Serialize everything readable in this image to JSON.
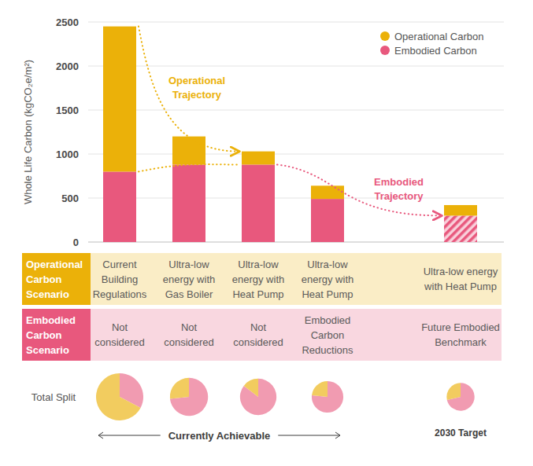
{
  "chart_data": {
    "type": "bar",
    "stacked": true,
    "y_label": "Whole Life Carbon (kgCO₂e/m²)",
    "categories": [
      "Current Building Regulations",
      "Ultra-low energy with Gas Boiler",
      "Ultra-low energy with Heat Pump",
      "Ultra-low energy with Heat Pump",
      "Ultra-low energy with Heat Pump"
    ],
    "series": [
      {
        "name": "Embodied Carbon",
        "color": "#e8587d",
        "values": [
          800,
          880,
          880,
          490,
          300
        ]
      },
      {
        "name": "Operational Carbon",
        "color": "#ebb109",
        "values": [
          1650,
          320,
          150,
          150,
          120
        ]
      }
    ],
    "ylim": [
      0,
      2500
    ],
    "yticks": [
      0,
      500,
      1000,
      1500,
      2000,
      2500
    ],
    "grid": true,
    "legend": "top-right",
    "row_headers": [
      "Operational Carbon Scenario",
      "Embodied Carbon Scenario"
    ],
    "embodied_scenarios": [
      "Not considered",
      "Not considered",
      "Not considered",
      "Embodied Carbon Reductions",
      "Future Embodied Benchmark"
    ],
    "annotations": [
      "Operational Trajectory",
      "Embodied Trajectory"
    ],
    "pie_label": "Total Split",
    "footer_labels": [
      "Currently Achievable",
      "2030 Target"
    ]
  }
}
